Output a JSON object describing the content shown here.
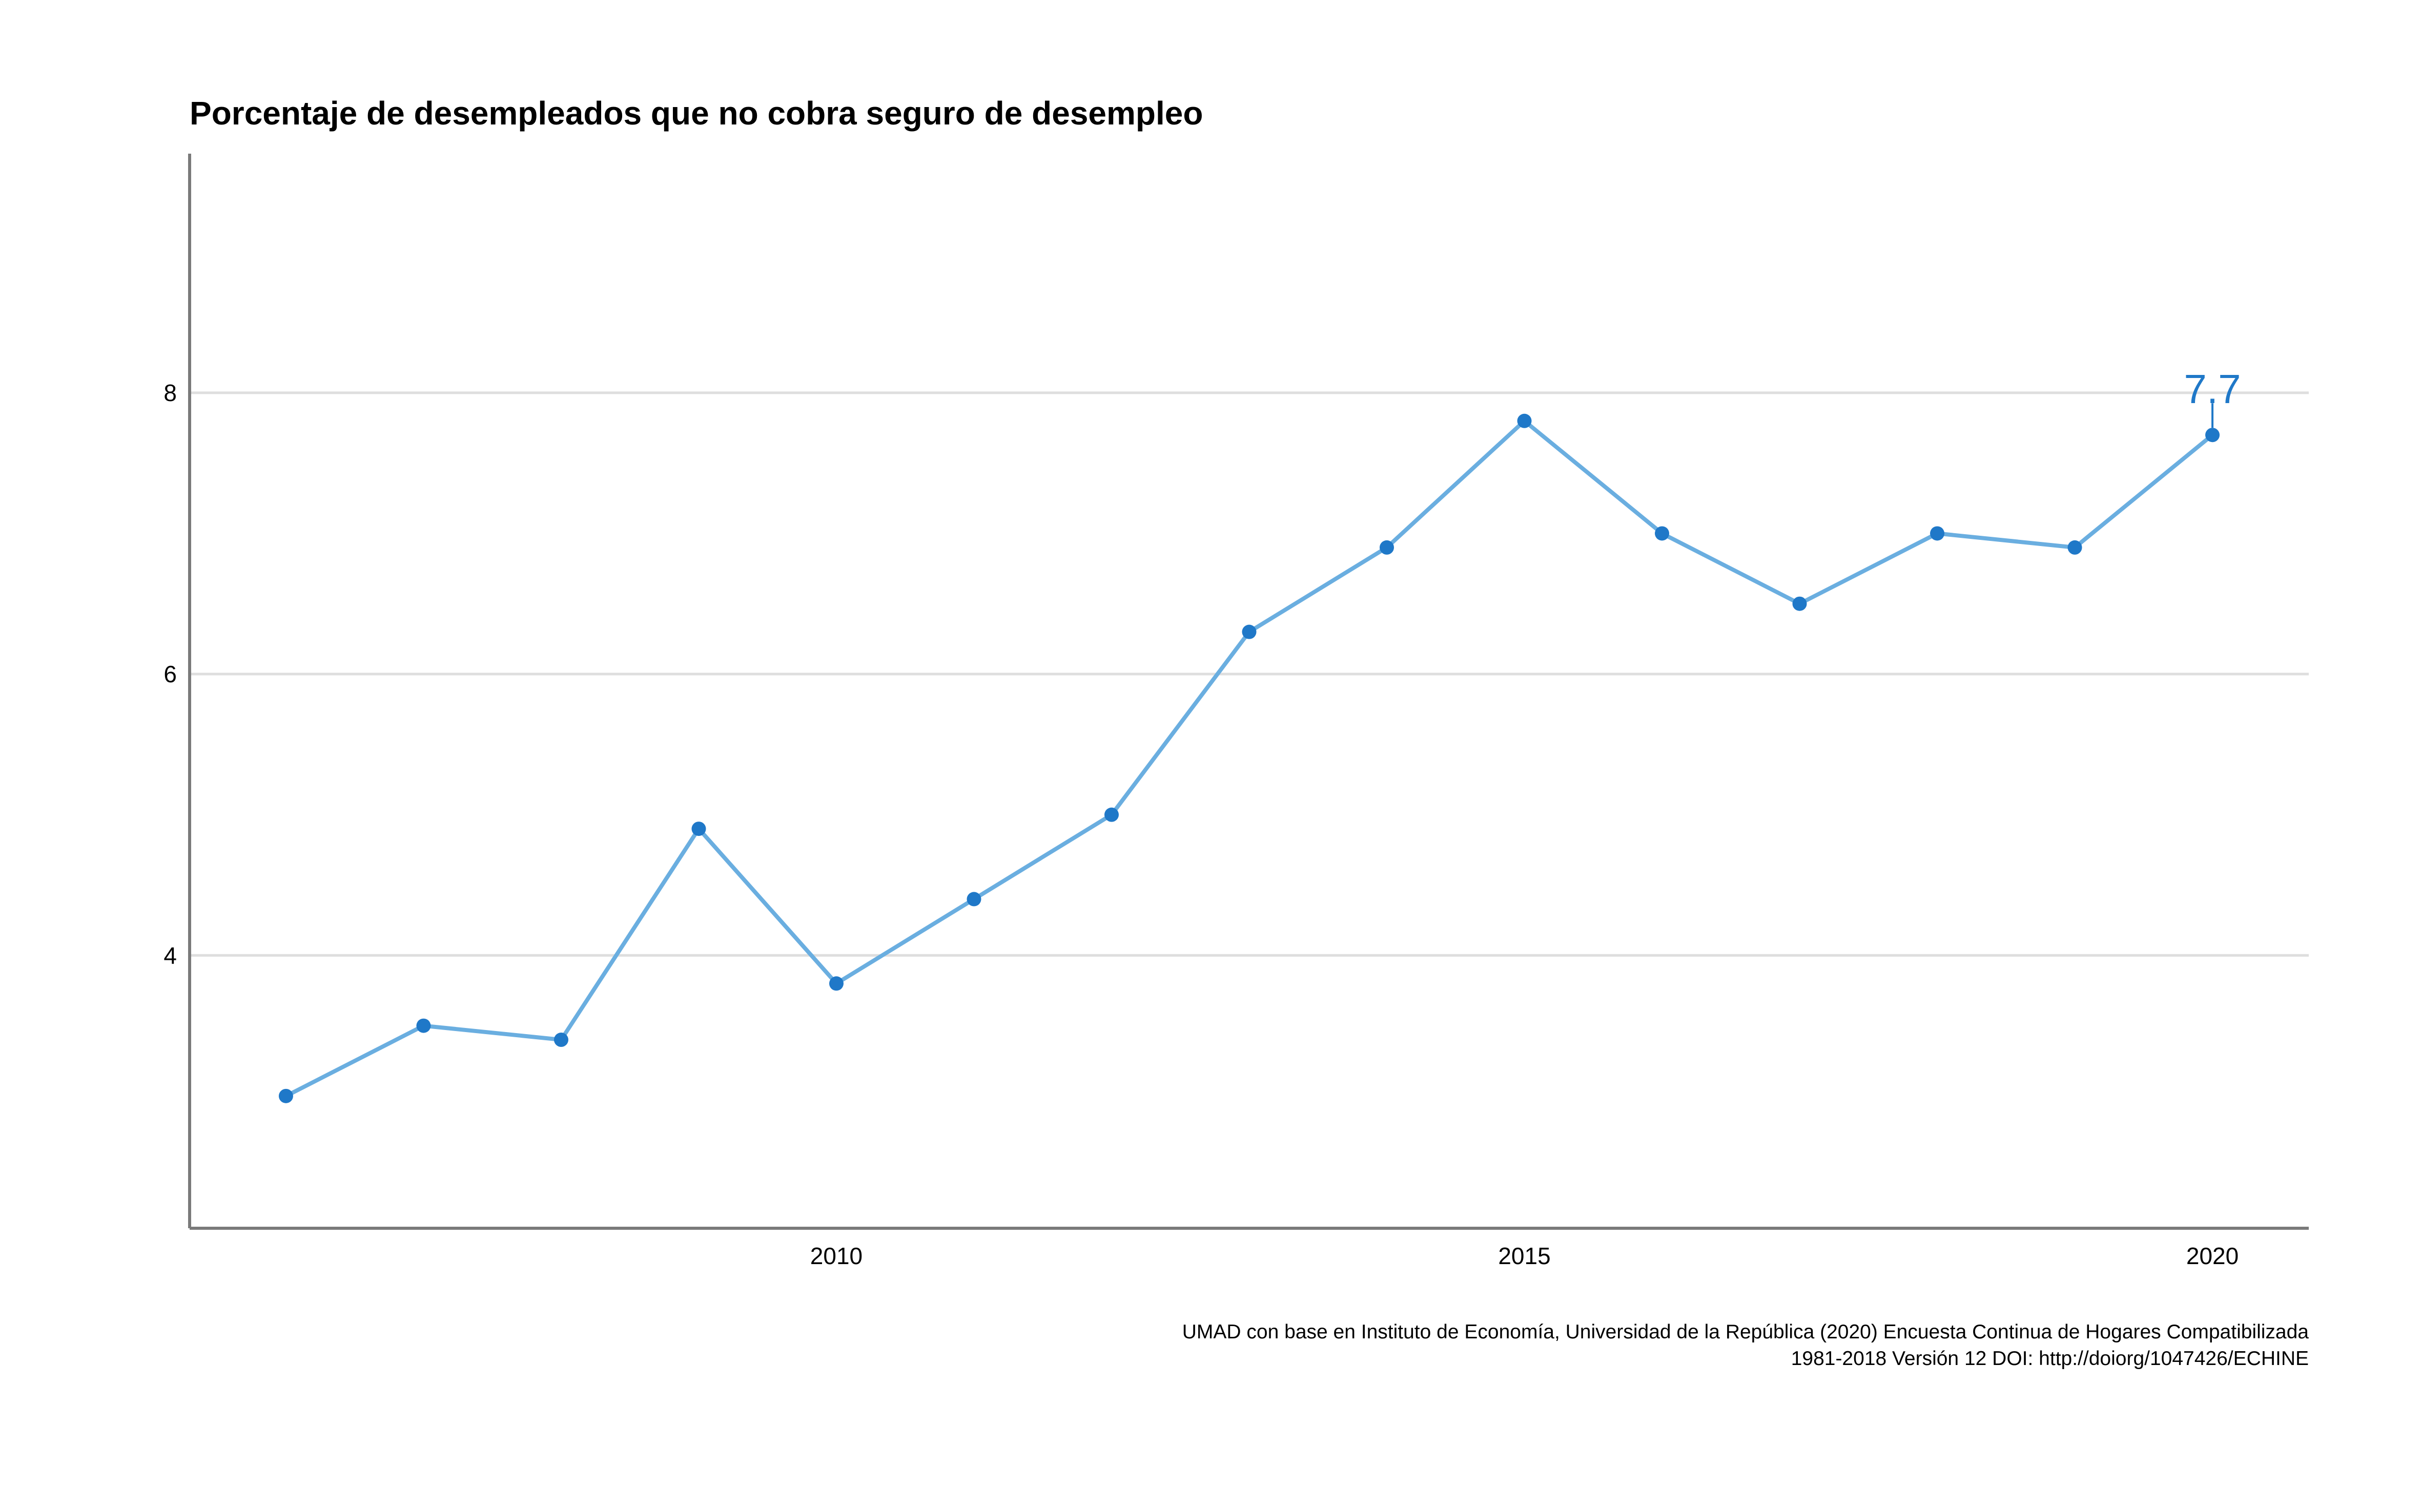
{
  "chart_data": {
    "type": "line",
    "title": "Porcentaje de desempleados que no cobra seguro de desempleo",
    "xlabel": "",
    "ylabel": "",
    "x": [
      2006,
      2007,
      2008,
      2009,
      2010,
      2011,
      2012,
      2013,
      2014,
      2015,
      2016,
      2017,
      2018,
      2019,
      2020
    ],
    "series": [
      {
        "values": [
          3.0,
          3.5,
          3.4,
          4.9,
          3.8,
          4.4,
          5.0,
          6.3,
          6.9,
          7.8,
          7.0,
          6.5,
          7.0,
          6.9,
          7.7
        ]
      }
    ],
    "xlim": [
      2005.3,
      2020.7
    ],
    "ylim": [
      2.06,
      9.7
    ],
    "x_ticks": [
      2010,
      2015,
      2020
    ],
    "x_tick_labels": [
      "2010",
      "2015",
      "2020"
    ],
    "y_ticks": [
      4,
      6,
      8
    ],
    "y_tick_labels": [
      "4",
      "6",
      "8"
    ],
    "grid": "horizontal",
    "legend": "none",
    "end_label": "7.7",
    "caption_lines": [
      "UMAD con base en Instituto de Economía, Universidad de la República (2020) Encuesta Continua de Hogares Compatibilizada",
      "1981-2018 Versión 12 DOI: http://doiorg/1047426/ECHINE"
    ],
    "colors": {
      "line": "#6aaee0",
      "points": "#1f78c8",
      "end_label": "#1f78c8",
      "grid": "#dedede",
      "axis": "#7a7a7a"
    }
  }
}
